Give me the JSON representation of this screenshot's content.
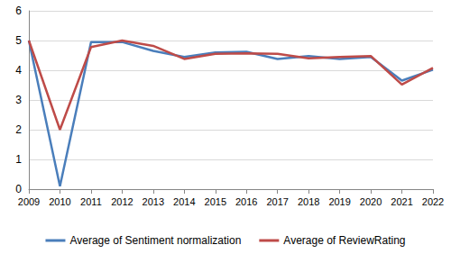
{
  "chart_data": {
    "type": "line",
    "categories": [
      "2009",
      "2010",
      "2011",
      "2012",
      "2013",
      "2014",
      "2015",
      "2016",
      "2017",
      "2018",
      "2019",
      "2020",
      "2021",
      "2022"
    ],
    "series": [
      {
        "name": "Average of Sentiment normalization",
        "color": "#4a7ebb",
        "values": [
          5.0,
          0.1,
          4.95,
          4.95,
          4.65,
          4.45,
          4.6,
          4.62,
          4.38,
          4.48,
          4.38,
          4.45,
          3.65,
          4.02
        ]
      },
      {
        "name": "Average of ReviewRating",
        "color": "#be4b48",
        "values": [
          5.0,
          2.0,
          4.78,
          5.0,
          4.82,
          4.38,
          4.55,
          4.57,
          4.55,
          4.4,
          4.45,
          4.48,
          3.52,
          4.08
        ]
      }
    ],
    "ylim": [
      0,
      6
    ],
    "yticks": [
      0,
      1,
      2,
      3,
      4,
      5,
      6
    ],
    "grid": true,
    "legend": "bottom"
  }
}
